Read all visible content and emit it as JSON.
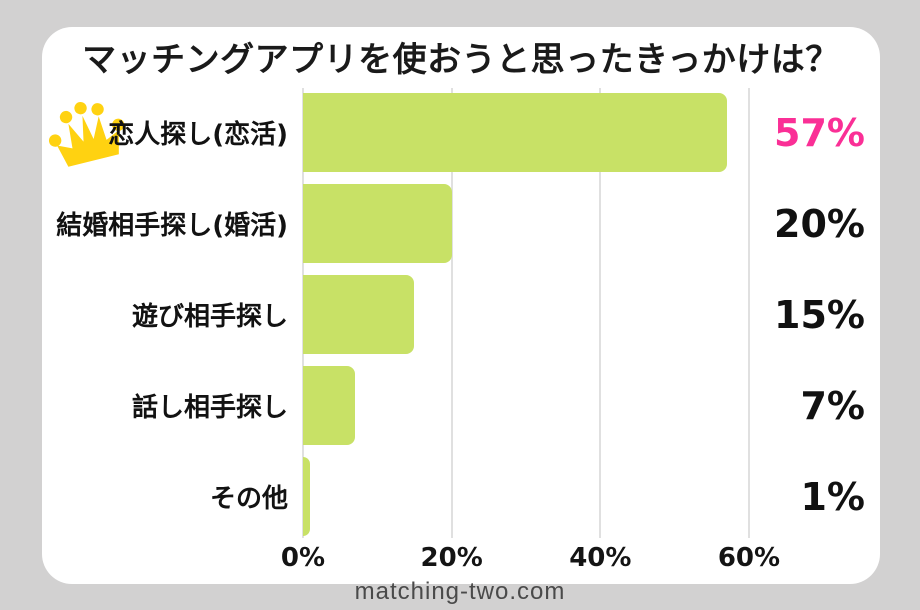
{
  "footer": {
    "site": "matching-two.com"
  },
  "colors": {
    "page_background": "#d2d1d1",
    "card_background": "#ffffff",
    "bar_green": "#c8e166",
    "highlight_pink": "#fa2f96",
    "crown_gold": "#ffd211",
    "gridline_gray": "#e0e0e0",
    "text_black": "#141414",
    "footer_gray": "#4a4a4a"
  },
  "chart_data": {
    "type": "bar",
    "orientation": "horizontal",
    "title": "マッチングアプリを使おうと思ったきっかけは？",
    "categories": [
      "恋人探し(恋活)",
      "結婚相手探し(婚活)",
      "遊び相手探し",
      "話し相手探し",
      "その他"
    ],
    "values": [
      57,
      20,
      15,
      7,
      1
    ],
    "value_labels": [
      "57%",
      "20%",
      "15%",
      "7%",
      "1%"
    ],
    "highlight_index": 0,
    "crown_row_index": 0,
    "x_ticks": [
      0,
      20,
      40,
      60
    ],
    "x_tick_labels": [
      "0%",
      "20%",
      "40%",
      "60%"
    ],
    "xlim": [
      0,
      63
    ],
    "xlabel": "",
    "ylabel": "",
    "grid": true,
    "legend": "none",
    "bar_color": "#c8e166",
    "highlight_value_color": "#fa2f96"
  }
}
